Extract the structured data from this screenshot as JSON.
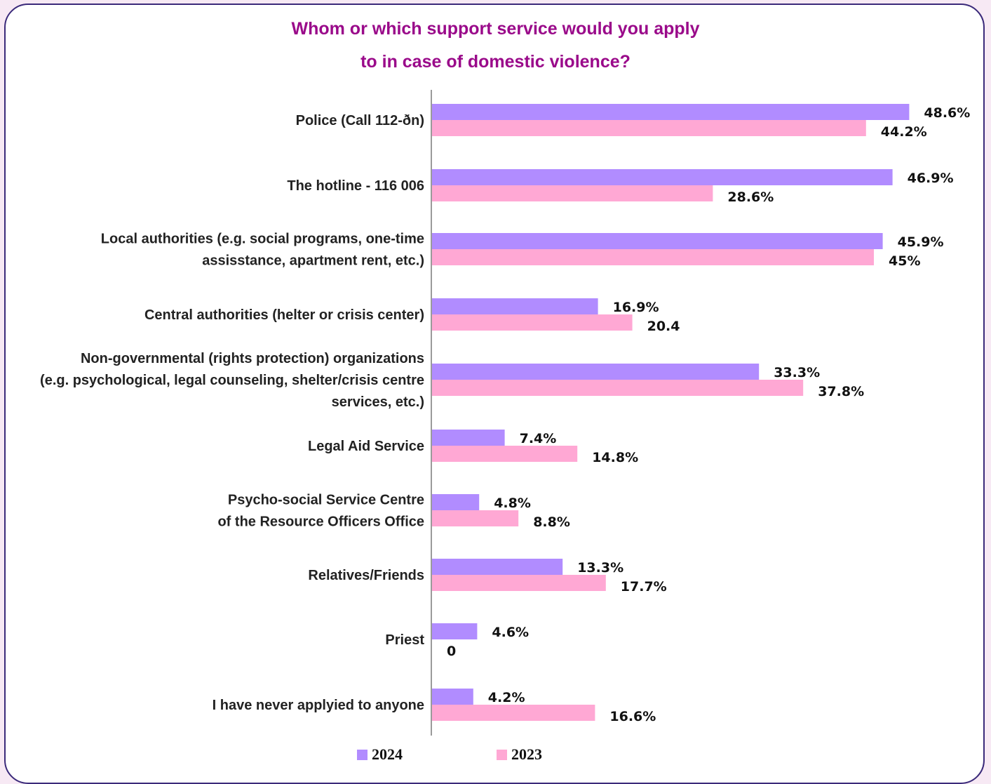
{
  "chart_data": {
    "type": "bar",
    "orientation": "horizontal",
    "title_lines": [
      "Whom or which support service would you apply",
      "to in case of domestic violence?"
    ],
    "categories": [
      [
        "Police (Call 112-ðn)"
      ],
      [
        "The hotline -  116 006"
      ],
      [
        "Local authorities (e.g. social programs, one-time",
        "assisstance, apartment rent, etc.)"
      ],
      [
        "Central authorities (helter or crisis center)"
      ],
      [
        "Non-governmental (rights protection) organizations",
        "(e.g. psychological, legal counseling, shelter/crisis centre",
        "services, etc.)"
      ],
      [
        "Legal Aid Service"
      ],
      [
        "Psycho-social Service Centre",
        "of the Resource Officers Office"
      ],
      [
        "Relatives/Friends"
      ],
      [
        "Priest"
      ],
      [
        "I have never applyied to anyone"
      ]
    ],
    "series": [
      {
        "name": "2024",
        "color": "#b18cff",
        "values": [
          48.6,
          46.9,
          45.9,
          16.9,
          33.3,
          7.4,
          4.8,
          13.3,
          4.6,
          4.2
        ],
        "labels": [
          "48.6%",
          "46.9%",
          "45.9%",
          "16.9%",
          "33.3%",
          "7.4%",
          "4.8%",
          "13.3%",
          "4.6%",
          "4.2%"
        ]
      },
      {
        "name": "2023",
        "color": "#ffa8d4",
        "values": [
          44.2,
          28.6,
          45,
          20.4,
          37.8,
          14.8,
          8.8,
          17.7,
          0,
          16.6
        ],
        "labels": [
          "44.2%",
          "28.6%",
          "45%",
          "20.4",
          "37.8%",
          "14.8%",
          "8.8%",
          "17.7%",
          "0",
          "16.6%"
        ]
      }
    ],
    "xlim": [
      0,
      50
    ],
    "grid": false,
    "legend_position": "bottom"
  }
}
